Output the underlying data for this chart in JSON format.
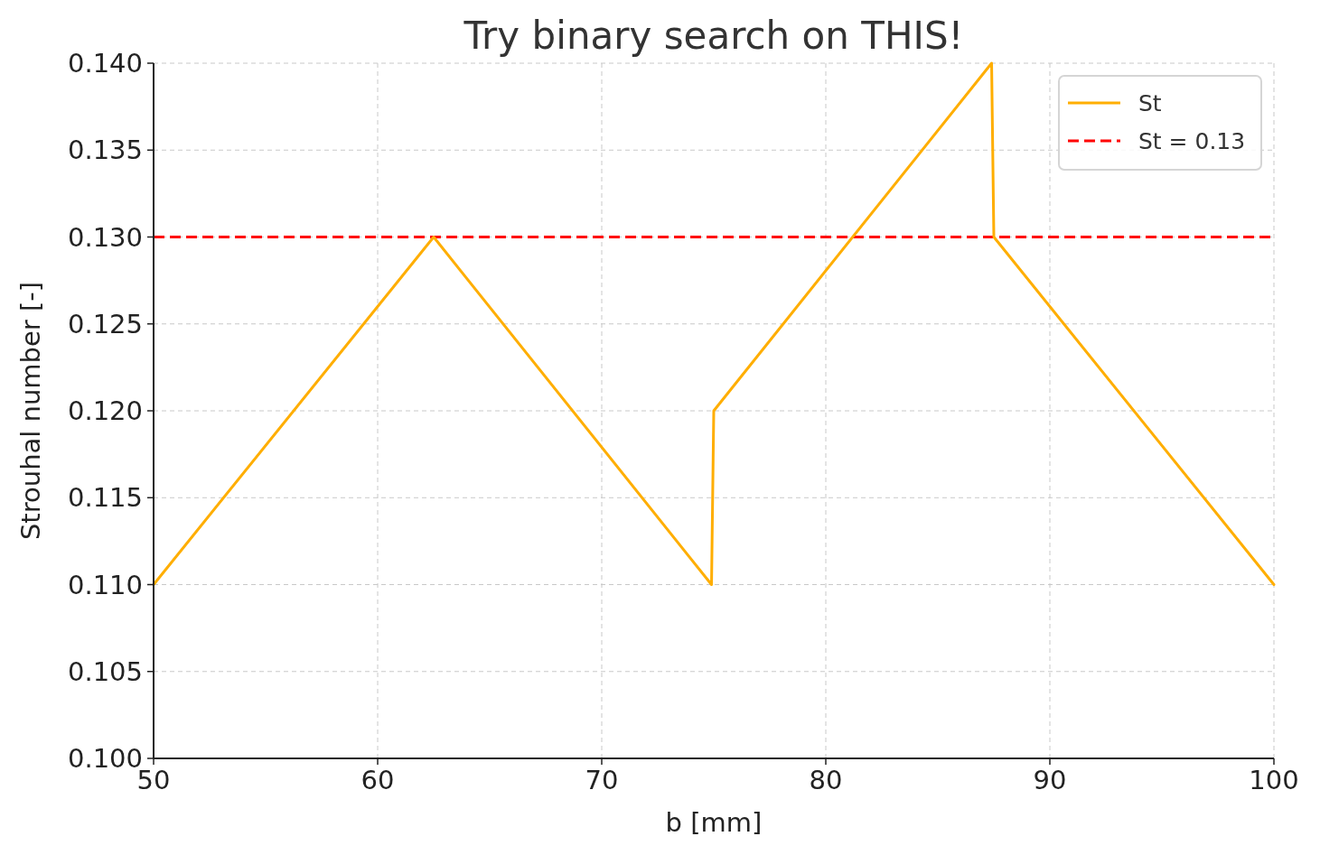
{
  "chart_data": {
    "type": "line",
    "title": "Try binary search on THIS!",
    "xlabel": "b [mm]",
    "ylabel": "Strouhal number [-]",
    "x": [
      50,
      62.5,
      74.9,
      75.0,
      87.4,
      87.5,
      100
    ],
    "series": [
      {
        "name": "St",
        "color": "#ffae00",
        "values": [
          0.11,
          0.13,
          0.11,
          0.12,
          0.14,
          0.13,
          0.11
        ]
      }
    ],
    "xlim": [
      50,
      100
    ],
    "xticks": [
      50,
      60,
      70,
      80,
      90,
      100
    ],
    "ylim": [
      0.1,
      0.14
    ],
    "yticks": [
      {
        "value": 0.1,
        "label": "0.100"
      },
      {
        "value": 0.105,
        "label": "0.105"
      },
      {
        "value": 0.11,
        "label": "0.110"
      },
      {
        "value": 0.115,
        "label": "0.115"
      },
      {
        "value": 0.12,
        "label": "0.120"
      },
      {
        "value": 0.125,
        "label": "0.125"
      },
      {
        "value": 0.13,
        "label": "0.130"
      },
      {
        "value": 0.135,
        "label": "0.135"
      },
      {
        "value": 0.14,
        "label": "0.140"
      }
    ],
    "ref_lines": [
      {
        "axis": "y",
        "value": 0.13,
        "label": "St = 0.13",
        "color": "#ff0000",
        "line_style": "dashed"
      }
    ],
    "grid": true,
    "legend": "top right",
    "line_style": "solid",
    "marker": "none"
  }
}
